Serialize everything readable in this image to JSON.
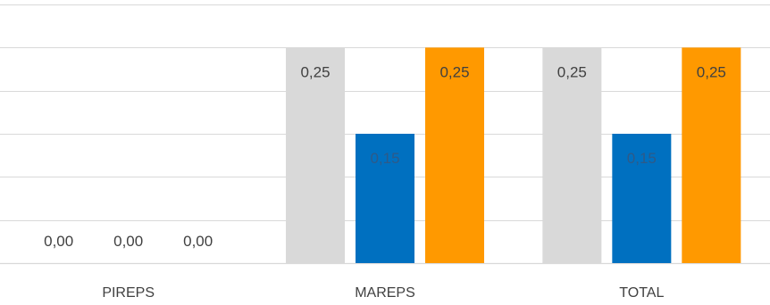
{
  "chart_data": {
    "type": "bar",
    "title": "",
    "xlabel": "",
    "ylabel": "",
    "categories": [
      "PIREPS",
      "MAREPS",
      "TOTAL"
    ],
    "series": [
      {
        "values": [
          0.0,
          0.25,
          0.25
        ],
        "labels": [
          "0,00",
          "0,25",
          "0,25"
        ],
        "color": "#d9d9d9"
      },
      {
        "values": [
          0.0,
          0.15,
          0.15
        ],
        "labels": [
          "0,00",
          "0,15",
          "0,15"
        ],
        "color": "#0070c0"
      },
      {
        "values": [
          0.0,
          0.25,
          0.25
        ],
        "labels": [
          "0,00",
          "0,25",
          "0,25"
        ],
        "color": "#ff9900"
      }
    ],
    "ylim": [
      0,
      0.3
    ],
    "grid": true,
    "legend": "none"
  }
}
